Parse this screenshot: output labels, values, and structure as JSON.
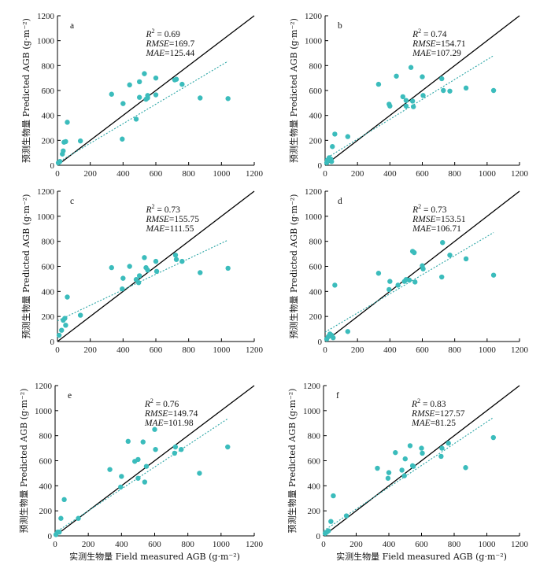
{
  "figure": {
    "y_axis_label": "预测生物量 Predicted AGB (g·m⁻²)",
    "x_axis_label": "实测生物量 Field measured AGB (g·m⁻²)"
  },
  "colors": {
    "points": "#3bbcbc",
    "fit_line": "#2aa5a5",
    "one_to_one_line": "#000000"
  },
  "chart_data": [
    {
      "type": "scatter",
      "panel": "a",
      "xlim": [
        0,
        1200
      ],
      "ylim": [
        0,
        1200
      ],
      "xticks": [
        0,
        200,
        400,
        600,
        800,
        1000,
        1200
      ],
      "yticks": [
        0,
        200,
        400,
        600,
        800,
        1000,
        1200
      ],
      "stats": {
        "r2": "0.69",
        "rmse": "169.7",
        "mae": "125.44"
      },
      "fit": {
        "x": [
          0,
          1040
        ],
        "y": [
          20,
          835
        ]
      },
      "points": [
        [
          5,
          20
        ],
        [
          15,
          30
        ],
        [
          30,
          90
        ],
        [
          35,
          115
        ],
        [
          40,
          185
        ],
        [
          50,
          190
        ],
        [
          60,
          345
        ],
        [
          140,
          195
        ],
        [
          330,
          570
        ],
        [
          395,
          210
        ],
        [
          400,
          495
        ],
        [
          440,
          645
        ],
        [
          480,
          370
        ],
        [
          500,
          670
        ],
        [
          500,
          545
        ],
        [
          530,
          735
        ],
        [
          540,
          530
        ],
        [
          550,
          540
        ],
        [
          550,
          560
        ],
        [
          600,
          700
        ],
        [
          600,
          565
        ],
        [
          715,
          685
        ],
        [
          725,
          690
        ],
        [
          760,
          650
        ],
        [
          870,
          540
        ],
        [
          1040,
          535
        ]
      ]
    },
    {
      "type": "scatter",
      "panel": "b",
      "xlim": [
        0,
        1200
      ],
      "ylim": [
        0,
        1200
      ],
      "xticks": [
        0,
        200,
        400,
        600,
        800,
        1000,
        1200
      ],
      "yticks": [
        0,
        200,
        400,
        600,
        800,
        1000,
        1200
      ],
      "stats": {
        "r2": "0.74",
        "rmse": "154.71",
        "mae": "107.29"
      },
      "fit": {
        "x": [
          0,
          1040
        ],
        "y": [
          50,
          880
        ]
      },
      "points": [
        [
          10,
          20
        ],
        [
          15,
          40
        ],
        [
          25,
          60
        ],
        [
          35,
          50
        ],
        [
          40,
          30
        ],
        [
          45,
          150
        ],
        [
          60,
          250
        ],
        [
          140,
          230
        ],
        [
          330,
          650
        ],
        [
          395,
          490
        ],
        [
          400,
          475
        ],
        [
          440,
          715
        ],
        [
          480,
          550
        ],
        [
          500,
          520
        ],
        [
          500,
          475
        ],
        [
          530,
          785
        ],
        [
          540,
          515
        ],
        [
          545,
          470
        ],
        [
          600,
          710
        ],
        [
          605,
          560
        ],
        [
          720,
          695
        ],
        [
          730,
          600
        ],
        [
          770,
          595
        ],
        [
          870,
          620
        ],
        [
          1040,
          600
        ]
      ]
    },
    {
      "type": "scatter",
      "panel": "c",
      "xlim": [
        0,
        1200
      ],
      "ylim": [
        0,
        1200
      ],
      "xticks": [
        0,
        200,
        400,
        600,
        800,
        1000,
        1200
      ],
      "yticks": [
        0,
        200,
        400,
        600,
        800,
        1000,
        1200
      ],
      "stats": {
        "r2": "0.73",
        "rmse": "155.75",
        "mae": "111.55"
      },
      "fit": {
        "x": [
          0,
          1040
        ],
        "y": [
          165,
          810
        ]
      },
      "points": [
        [
          10,
          50
        ],
        [
          25,
          90
        ],
        [
          35,
          170
        ],
        [
          45,
          185
        ],
        [
          50,
          130
        ],
        [
          60,
          355
        ],
        [
          140,
          210
        ],
        [
          330,
          590
        ],
        [
          395,
          420
        ],
        [
          400,
          505
        ],
        [
          440,
          600
        ],
        [
          480,
          495
        ],
        [
          495,
          470
        ],
        [
          500,
          525
        ],
        [
          530,
          670
        ],
        [
          540,
          590
        ],
        [
          550,
          570
        ],
        [
          600,
          640
        ],
        [
          605,
          560
        ],
        [
          720,
          690
        ],
        [
          725,
          655
        ],
        [
          760,
          640
        ],
        [
          870,
          550
        ],
        [
          1040,
          585
        ]
      ]
    },
    {
      "type": "scatter",
      "panel": "d",
      "xlim": [
        0,
        1200
      ],
      "ylim": [
        0,
        1200
      ],
      "xticks": [
        0,
        200,
        400,
        600,
        800,
        1000,
        1200
      ],
      "yticks": [
        0,
        200,
        400,
        600,
        800,
        1000,
        1200
      ],
      "stats": {
        "r2": "0.73",
        "rmse": "153.51",
        "mae": "106.71"
      },
      "fit": {
        "x": [
          0,
          1040
        ],
        "y": [
          75,
          870
        ]
      },
      "points": [
        [
          10,
          20
        ],
        [
          20,
          40
        ],
        [
          30,
          60
        ],
        [
          40,
          50
        ],
        [
          50,
          30
        ],
        [
          60,
          450
        ],
        [
          140,
          80
        ],
        [
          330,
          545
        ],
        [
          395,
          415
        ],
        [
          400,
          480
        ],
        [
          450,
          450
        ],
        [
          490,
          480
        ],
        [
          500,
          495
        ],
        [
          520,
          490
        ],
        [
          540,
          720
        ],
        [
          550,
          710
        ],
        [
          555,
          475
        ],
        [
          600,
          605
        ],
        [
          605,
          580
        ],
        [
          720,
          515
        ],
        [
          725,
          790
        ],
        [
          770,
          690
        ],
        [
          870,
          660
        ],
        [
          1040,
          530
        ]
      ]
    },
    {
      "type": "scatter",
      "panel": "e",
      "xlim": [
        0,
        1200
      ],
      "ylim": [
        0,
        1200
      ],
      "xticks": [
        0,
        200,
        400,
        600,
        800,
        1000,
        1200
      ],
      "yticks": [
        0,
        200,
        400,
        600,
        800,
        1000,
        1200
      ],
      "stats": {
        "r2": "0.76",
        "rmse": "149.74",
        "mae": "101.98"
      },
      "fit": {
        "x": [
          0,
          1040
        ],
        "y": [
          25,
          935
        ]
      },
      "points": [
        [
          5,
          10
        ],
        [
          15,
          30
        ],
        [
          25,
          30
        ],
        [
          35,
          140
        ],
        [
          55,
          290
        ],
        [
          140,
          140
        ],
        [
          330,
          530
        ],
        [
          395,
          390
        ],
        [
          400,
          475
        ],
        [
          440,
          755
        ],
        [
          480,
          595
        ],
        [
          500,
          610
        ],
        [
          500,
          460
        ],
        [
          530,
          750
        ],
        [
          540,
          430
        ],
        [
          550,
          555
        ],
        [
          600,
          850
        ],
        [
          605,
          690
        ],
        [
          720,
          660
        ],
        [
          725,
          710
        ],
        [
          760,
          690
        ],
        [
          870,
          500
        ],
        [
          1040,
          710
        ]
      ]
    },
    {
      "type": "scatter",
      "panel": "f",
      "xlim": [
        0,
        1200
      ],
      "ylim": [
        0,
        1200
      ],
      "xticks": [
        0,
        200,
        400,
        600,
        800,
        1000,
        1200
      ],
      "yticks": [
        0,
        200,
        400,
        600,
        800,
        1000,
        1200
      ],
      "stats": {
        "r2": "0.83",
        "rmse": "127.57",
        "mae": "81.25"
      },
      "fit": {
        "x": [
          0,
          1040
        ],
        "y": [
          40,
          945
        ]
      },
      "points": [
        [
          10,
          20
        ],
        [
          20,
          30
        ],
        [
          30,
          40
        ],
        [
          45,
          115
        ],
        [
          60,
          320
        ],
        [
          140,
          160
        ],
        [
          330,
          540
        ],
        [
          395,
          460
        ],
        [
          400,
          505
        ],
        [
          440,
          665
        ],
        [
          480,
          525
        ],
        [
          495,
          480
        ],
        [
          500,
          615
        ],
        [
          530,
          720
        ],
        [
          545,
          560
        ],
        [
          550,
          555
        ],
        [
          600,
          700
        ],
        [
          605,
          660
        ],
        [
          720,
          635
        ],
        [
          725,
          700
        ],
        [
          765,
          740
        ],
        [
          870,
          545
        ],
        [
          1040,
          785
        ]
      ]
    }
  ]
}
